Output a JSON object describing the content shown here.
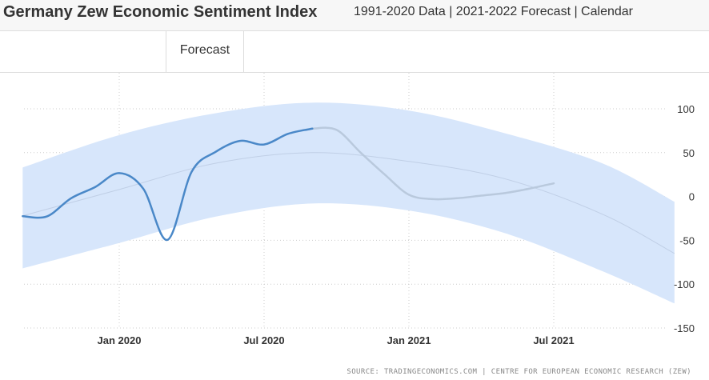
{
  "header": {
    "title": "Germany Zew Economic Sentiment Index",
    "subtitle": "1991-2020 Data | 2021-2022 Forecast | Calendar"
  },
  "tabs": [
    {
      "label": "Forecast"
    }
  ],
  "source": "SOURCE: TRADINGECONOMICS.COM | CENTRE FOR EUROPEAN ECONOMIC RESEARCH (ZEW)",
  "chart_data": {
    "type": "line",
    "title": "",
    "xlabel": "",
    "ylabel": "",
    "ylim": [
      -150,
      100
    ],
    "yticks": [
      100,
      50,
      0,
      -50,
      -100,
      -150
    ],
    "xticks": [
      "Jan 2020",
      "Jul 2020",
      "Jan 2021",
      "Jul 2021"
    ],
    "grid": true,
    "legend": "none",
    "colors": {
      "actual": "#4a88c8",
      "forecast": "#b9c9dd",
      "band": "#d7e6fb",
      "trend": "#c0cfe6"
    },
    "series": [
      {
        "role": "actual",
        "x": [
          "2019-09",
          "2019-10",
          "2019-11",
          "2019-12",
          "2020-01",
          "2020-02",
          "2020-03",
          "2020-04",
          "2020-05",
          "2020-06",
          "2020-07",
          "2020-08",
          "2020-09"
        ],
        "values": [
          -22.5,
          -22.8,
          -2.1,
          10.7,
          26.7,
          8.7,
          -49.5,
          28.2,
          51.0,
          63.4,
          59.3,
          71.5,
          77.4
        ]
      },
      {
        "role": "forecast",
        "x": [
          "2020-09",
          "2020-10",
          "2020-11",
          "2020-12",
          "2021-01",
          "2021-02",
          "2021-03",
          "2021-04",
          "2021-05",
          "2021-06",
          "2021-07"
        ],
        "values": [
          77.4,
          76.0,
          50.0,
          25.0,
          2.0,
          -3.0,
          -2.0,
          1.0,
          4.0,
          9.0,
          15.0
        ]
      },
      {
        "role": "trend",
        "x": [
          "2019-09",
          "2020-01",
          "2020-05",
          "2020-09",
          "2021-01",
          "2021-05",
          "2021-09",
          "2021-12"
        ],
        "values": [
          -22,
          8,
          38,
          50,
          40,
          20,
          -20,
          -65
        ]
      },
      {
        "role": "band",
        "x": [
          "2019-09",
          "2020-01",
          "2020-05",
          "2020-09",
          "2021-01",
          "2021-05",
          "2021-09",
          "2021-12"
        ],
        "upper": [
          33,
          70,
          95,
          107,
          98,
          72,
          38,
          -6
        ],
        "lower": [
          -82,
          -53,
          -23,
          -8,
          -16,
          -42,
          -85,
          -122
        ]
      }
    ]
  }
}
